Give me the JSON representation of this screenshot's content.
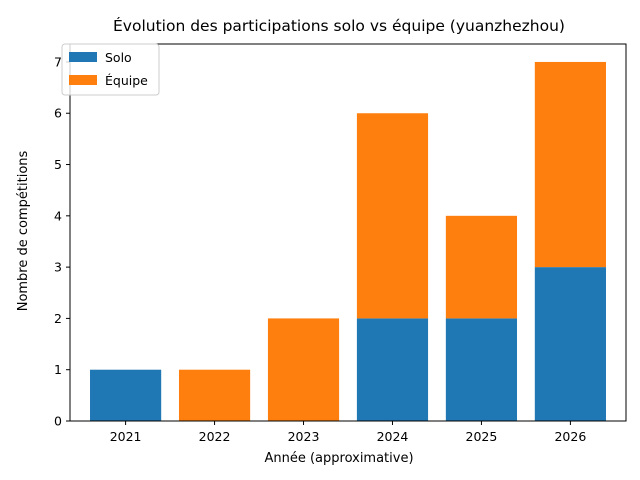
{
  "chart_data": {
    "type": "bar",
    "stacked": true,
    "title": "Évolution des participations solo vs équipe (yuanzhezhou)",
    "xlabel": "Année (approximative)",
    "ylabel": "Nombre de compétitions",
    "categories": [
      "2021",
      "2022",
      "2023",
      "2024",
      "2025",
      "2026"
    ],
    "series": [
      {
        "name": "Solo",
        "values": [
          1,
          0,
          0,
          2,
          2,
          3
        ],
        "color": "#1f77b4"
      },
      {
        "name": "Équipe",
        "values": [
          0,
          1,
          2,
          4,
          2,
          4
        ],
        "color": "#ff7f0e"
      }
    ],
    "ylim": [
      0,
      7.35
    ],
    "yticks": [
      0,
      1,
      2,
      3,
      4,
      5,
      6,
      7
    ],
    "grid": false,
    "legend_position": "top-left"
  }
}
